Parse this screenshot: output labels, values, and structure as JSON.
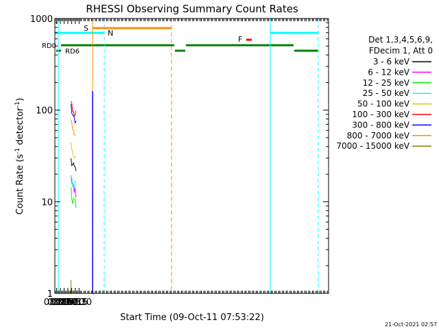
{
  "chart_data": {
    "type": "line",
    "title": "RHESSI Observing Summary Count Rates",
    "xlabel": "Start Time (09-Oct-11 07:53:22)",
    "ylabel_main": "Count Rate (s",
    "ylabel_sup1": "-1",
    "ylabel_mid": " detector",
    "ylabel_sup2": "-1",
    "ylabel_end": ")",
    "yscale": "log",
    "xlim": [
      473,
      1570
    ],
    "ylim": [
      1,
      1000
    ],
    "x_ticks": [
      {
        "label": "08:00",
        "v": 480
      },
      {
        "label": "08:15",
        "v": 495
      },
      {
        "label": "08:30",
        "v": 510
      },
      {
        "label": "08:45",
        "v": 525
      },
      {
        "label": "09:00",
        "v": 540
      },
      {
        "label": "09:15",
        "v": 555
      },
      {
        "label": "09:30",
        "v": 570
      }
    ],
    "y_ticks": [
      {
        "label": "1",
        "v": 1
      },
      {
        "label": "10",
        "v": 10
      },
      {
        "label": "100",
        "v": 100
      },
      {
        "label": "1000",
        "v": 1000
      }
    ],
    "legend": {
      "placement": "right",
      "header": [
        "Det 1,3,4,5,6,9,",
        "FDecim 1, Att 0"
      ],
      "entries": [
        {
          "label": "3 - 6 keV",
          "color": "#000000"
        },
        {
          "label": "6 - 12 keV",
          "color": "#ff00ff"
        },
        {
          "label": "12 - 25 keV",
          "color": "#00ee00"
        },
        {
          "label": "25 - 50 keV",
          "color": "#00ffff"
        },
        {
          "label": "50 - 100 keV",
          "color": "#d8c800"
        },
        {
          "label": "100 - 300 keV",
          "color": "#ff0000"
        },
        {
          "label": "300 - 800 keV",
          "color": "#0000ff"
        },
        {
          "label": "800 - 7000 keV",
          "color": "#ff8c00"
        },
        {
          "label": "7000 - 15000 keV",
          "color": "#808000"
        }
      ]
    },
    "flags": {
      "S": {
        "label": "S",
        "color": "#ff8c00"
      },
      "N": {
        "label": "N",
        "color": "#00ffff"
      },
      "F": {
        "label": "F",
        "color": "#ff0000"
      },
      "RD0": {
        "label": "RD0",
        "color": "#008000"
      },
      "RD6": {
        "label": "RD6",
        "color": "#008000"
      }
    },
    "series": [
      {
        "name": "3 - 6 keV",
        "color": "#000000",
        "x": [
          537.6,
          538.5,
          540,
          543,
          546,
          550,
          553,
          556,
          557.4
        ],
        "y": [
          29,
          27,
          26,
          25,
          24.5,
          24,
          23.5,
          23,
          23
        ]
      },
      {
        "name": "6 - 12 keV",
        "color": "#ff00ff",
        "x": [
          537.6,
          538.5,
          540,
          543,
          546,
          550,
          553,
          556,
          557.4
        ],
        "y": [
          17,
          16,
          15,
          14.5,
          14,
          13.5,
          13,
          12.8,
          12.5
        ]
      },
      {
        "name": "12 - 25 keV",
        "color": "#00ee00",
        "x": [
          537.6,
          538.5,
          540,
          543,
          546,
          550,
          553,
          556,
          557.4
        ],
        "y": [
          14,
          13,
          12,
          11,
          10,
          9.5,
          9.5,
          9.5,
          10
        ]
      },
      {
        "name": "25 - 50 keV",
        "color": "#00ffff",
        "x": [
          537.6,
          538.5,
          540,
          543,
          546,
          550,
          553,
          556,
          557.4
        ],
        "y": [
          19,
          18,
          17,
          16,
          15.5,
          15,
          14.8,
          14.5,
          14.5
        ]
      },
      {
        "name": "50 - 100 keV",
        "color": "#d8c800",
        "x": [
          537.6,
          538.5,
          540,
          543,
          546,
          550,
          553,
          556,
          557.4
        ],
        "y": [
          45,
          42,
          38,
          35,
          33,
          32,
          32,
          32,
          32
        ]
      },
      {
        "name": "100 - 300 keV",
        "color": "#ff0000",
        "x": [
          537.6,
          538.5,
          540,
          543,
          546,
          550,
          553,
          556,
          557.4
        ],
        "y": [
          125,
          120,
          112,
          100,
          93,
          90,
          90,
          90,
          92
        ]
      },
      {
        "name": "300 - 800 keV",
        "color": "#0000ff",
        "x": [
          537.6,
          538.5,
          540,
          543,
          546,
          550,
          553,
          556,
          557.4
        ],
        "y": [
          110,
          105,
          98,
          90,
          84,
          80,
          78,
          76,
          75
        ]
      },
      {
        "name": "800 - 7000 keV",
        "color": "#ff8c00",
        "x": [
          537.6,
          538.5,
          540,
          543,
          546,
          550,
          553,
          556,
          557.4
        ],
        "y": [
          85,
          80,
          72,
          65,
          60,
          57,
          55,
          54,
          54
        ]
      },
      {
        "name": "7000 - 15000 keV",
        "color": "#808000",
        "x": [
          537.6,
          539.3
        ],
        "y": [
          1.9,
          1.9
        ]
      }
    ],
    "timestamp": "21-Oct-2021 02:57"
  }
}
